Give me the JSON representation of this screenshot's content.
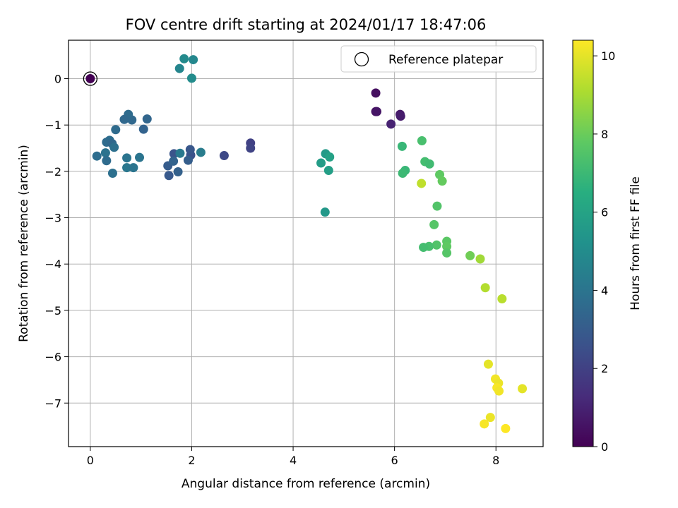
{
  "chart_data": {
    "type": "scatter",
    "title": "FOV centre drift starting at 2024/01/17 18:47:06",
    "xlabel": "Angular distance from reference (arcmin)",
    "ylabel": "Rotation from reference (arcmin)",
    "xlim": [
      -0.43,
      8.93
    ],
    "ylim": [
      -7.94,
      0.83
    ],
    "xticks": [
      0,
      2,
      4,
      6,
      8
    ],
    "yticks": [
      0,
      -1,
      -2,
      -3,
      -4,
      -5,
      -6,
      -7
    ],
    "grid": true,
    "legend": {
      "position": "top-right",
      "entries": [
        "Reference platepar"
      ]
    },
    "reference_point": {
      "x": 0,
      "y": 0,
      "label": "Reference platepar"
    },
    "colorbar": {
      "label": "Hours from first FF file",
      "colormap": "viridis",
      "range": [
        0,
        10.4
      ],
      "ticks": [
        0,
        2,
        4,
        6,
        8,
        10
      ]
    },
    "points": [
      {
        "x": 0.0,
        "y": 0.0,
        "c": 0.0
      },
      {
        "x": 5.63,
        "y": -0.31,
        "c": 0.4
      },
      {
        "x": 5.63,
        "y": -0.71,
        "c": 0.5
      },
      {
        "x": 5.65,
        "y": -0.71,
        "c": 0.6
      },
      {
        "x": 6.11,
        "y": -0.77,
        "c": 0.7
      },
      {
        "x": 6.12,
        "y": -0.81,
        "c": 0.8
      },
      {
        "x": 5.93,
        "y": -0.98,
        "c": 1.0
      },
      {
        "x": 3.16,
        "y": -1.39,
        "c": 2.0
      },
      {
        "x": 3.16,
        "y": -1.5,
        "c": 2.1
      },
      {
        "x": 2.64,
        "y": -1.66,
        "c": 2.3
      },
      {
        "x": 1.98,
        "y": -1.65,
        "c": 2.6
      },
      {
        "x": 1.97,
        "y": -1.53,
        "c": 2.8
      },
      {
        "x": 1.65,
        "y": -1.62,
        "c": 2.7
      },
      {
        "x": 1.55,
        "y": -2.09,
        "c": 2.9
      },
      {
        "x": 1.53,
        "y": -1.88,
        "c": 3.0
      },
      {
        "x": 1.73,
        "y": -2.01,
        "c": 3.2
      },
      {
        "x": 1.93,
        "y": -1.76,
        "c": 3.1
      },
      {
        "x": 1.64,
        "y": -1.78,
        "c": 3.3
      },
      {
        "x": 1.05,
        "y": -1.09,
        "c": 3.3
      },
      {
        "x": 1.12,
        "y": -0.87,
        "c": 3.4
      },
      {
        "x": 0.82,
        "y": -0.89,
        "c": 3.5
      },
      {
        "x": 0.75,
        "y": -0.77,
        "c": 3.6
      },
      {
        "x": 0.67,
        "y": -0.88,
        "c": 3.5
      },
      {
        "x": 0.5,
        "y": -1.1,
        "c": 3.6
      },
      {
        "x": 0.38,
        "y": -1.33,
        "c": 3.7
      },
      {
        "x": 0.32,
        "y": -1.37,
        "c": 3.6
      },
      {
        "x": 0.43,
        "y": -1.4,
        "c": 3.5
      },
      {
        "x": 0.47,
        "y": -1.48,
        "c": 3.8
      },
      {
        "x": 0.3,
        "y": -1.6,
        "c": 3.9
      },
      {
        "x": 0.13,
        "y": -1.67,
        "c": 3.7
      },
      {
        "x": 0.32,
        "y": -1.77,
        "c": 3.6
      },
      {
        "x": 0.44,
        "y": -2.04,
        "c": 3.8
      },
      {
        "x": 0.72,
        "y": -1.71,
        "c": 4.0
      },
      {
        "x": 0.72,
        "y": -1.92,
        "c": 4.1
      },
      {
        "x": 0.85,
        "y": -1.92,
        "c": 4.0
      },
      {
        "x": 0.97,
        "y": -1.7,
        "c": 4.0
      },
      {
        "x": 1.77,
        "y": -1.61,
        "c": 4.2
      },
      {
        "x": 2.18,
        "y": -1.59,
        "c": 4.3
      },
      {
        "x": 1.76,
        "y": 0.22,
        "c": 4.7
      },
      {
        "x": 1.85,
        "y": 0.43,
        "c": 4.9
      },
      {
        "x": 2.03,
        "y": 0.41,
        "c": 4.8
      },
      {
        "x": 2.0,
        "y": 0.01,
        "c": 5.0
      },
      {
        "x": 4.64,
        "y": -1.62,
        "c": 5.6
      },
      {
        "x": 4.72,
        "y": -1.69,
        "c": 5.9
      },
      {
        "x": 4.55,
        "y": -1.82,
        "c": 5.7
      },
      {
        "x": 4.7,
        "y": -1.98,
        "c": 5.8
      },
      {
        "x": 4.63,
        "y": -2.88,
        "c": 5.5
      },
      {
        "x": 6.15,
        "y": -1.46,
        "c": 6.9
      },
      {
        "x": 6.54,
        "y": -1.34,
        "c": 7.3
      },
      {
        "x": 6.21,
        "y": -1.98,
        "c": 6.9
      },
      {
        "x": 6.16,
        "y": -2.04,
        "c": 7.0
      },
      {
        "x": 6.6,
        "y": -1.79,
        "c": 7.2
      },
      {
        "x": 6.69,
        "y": -1.84,
        "c": 7.1
      },
      {
        "x": 6.89,
        "y": -2.07,
        "c": 7.8
      },
      {
        "x": 6.94,
        "y": -2.21,
        "c": 7.9
      },
      {
        "x": 6.53,
        "y": -2.26,
        "c": 9.4
      },
      {
        "x": 6.84,
        "y": -2.75,
        "c": 7.5
      },
      {
        "x": 6.78,
        "y": -3.15,
        "c": 7.6
      },
      {
        "x": 7.03,
        "y": -3.51,
        "c": 7.7
      },
      {
        "x": 7.03,
        "y": -3.62,
        "c": 7.8
      },
      {
        "x": 6.83,
        "y": -3.59,
        "c": 7.5
      },
      {
        "x": 6.68,
        "y": -3.62,
        "c": 7.3
      },
      {
        "x": 6.57,
        "y": -3.64,
        "c": 7.2
      },
      {
        "x": 7.03,
        "y": -3.76,
        "c": 7.6
      },
      {
        "x": 7.49,
        "y": -3.82,
        "c": 8.1
      },
      {
        "x": 7.69,
        "y": -3.89,
        "c": 8.9
      },
      {
        "x": 7.79,
        "y": -4.51,
        "c": 9.2
      },
      {
        "x": 8.12,
        "y": -4.75,
        "c": 9.3
      },
      {
        "x": 7.85,
        "y": -6.16,
        "c": 10.0
      },
      {
        "x": 7.99,
        "y": -6.48,
        "c": 10.2
      },
      {
        "x": 8.05,
        "y": -6.57,
        "c": 10.1
      },
      {
        "x": 8.02,
        "y": -6.67,
        "c": 10.3
      },
      {
        "x": 8.06,
        "y": -6.74,
        "c": 10.2
      },
      {
        "x": 8.52,
        "y": -6.69,
        "c": 10.0
      },
      {
        "x": 7.89,
        "y": -7.31,
        "c": 10.1
      },
      {
        "x": 7.77,
        "y": -7.45,
        "c": 10.3
      },
      {
        "x": 8.19,
        "y": -7.55,
        "c": 10.4
      }
    ]
  }
}
